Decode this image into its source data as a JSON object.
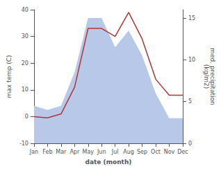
{
  "chart_data": {
    "type": "line",
    "xlabel": "date (month)",
    "ylabel": "max temp (C)",
    "y2label": "med. precipitation\n(kg/m2)",
    "categories": [
      "Jan",
      "Feb",
      "Mar",
      "Apr",
      "May",
      "Jun",
      "Jul",
      "Aug",
      "Sep",
      "Oct",
      "Nov",
      "Dec"
    ],
    "series": [
      {
        "type": "area",
        "axis": "y2",
        "color": "#b8c8e8",
        "values": [
          4.5,
          4.0,
          4.5,
          8.5,
          15.0,
          15.0,
          11.5,
          13.5,
          10.5,
          6.0,
          3.0,
          3.0
        ]
      },
      {
        "type": "line",
        "color": "#b03535",
        "values": [
          0,
          -0.5,
          1,
          11,
          33,
          33,
          30,
          39,
          29,
          14,
          8,
          8
        ]
      }
    ],
    "ylim": [
      -10,
      40
    ],
    "yticks": [
      -10,
      0,
      10,
      20,
      30,
      40
    ],
    "y2lim": [
      0,
      16
    ],
    "y2ticks": [
      0,
      5,
      10,
      15
    ],
    "grid": false
  }
}
